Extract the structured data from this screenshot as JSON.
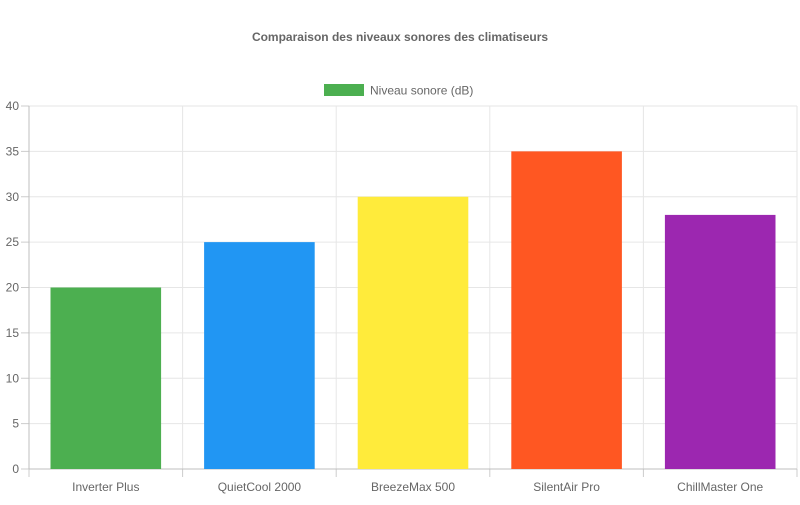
{
  "chart_data": {
    "type": "bar",
    "title": "Comparaison des niveaux sonores des climatiseurs",
    "categories": [
      "Inverter Plus",
      "QuietCool 2000",
      "BreezeMax 500",
      "SilentAir Pro",
      "ChillMaster One"
    ],
    "series": [
      {
        "name": "Niveau sonore (dB)",
        "values": [
          20,
          25,
          30,
          35,
          28
        ],
        "legend_color": "#4CAF50"
      }
    ],
    "bar_colors": [
      "#4CAF50",
      "#2196F3",
      "#FFEB3B",
      "#FF5722",
      "#9C27B0"
    ],
    "ylim": [
      0,
      40
    ],
    "yticks": [
      0,
      5,
      10,
      15,
      20,
      25,
      30,
      35,
      40
    ],
    "xlabel": "",
    "ylabel": "",
    "grid": true,
    "legend_position": "top-center"
  }
}
